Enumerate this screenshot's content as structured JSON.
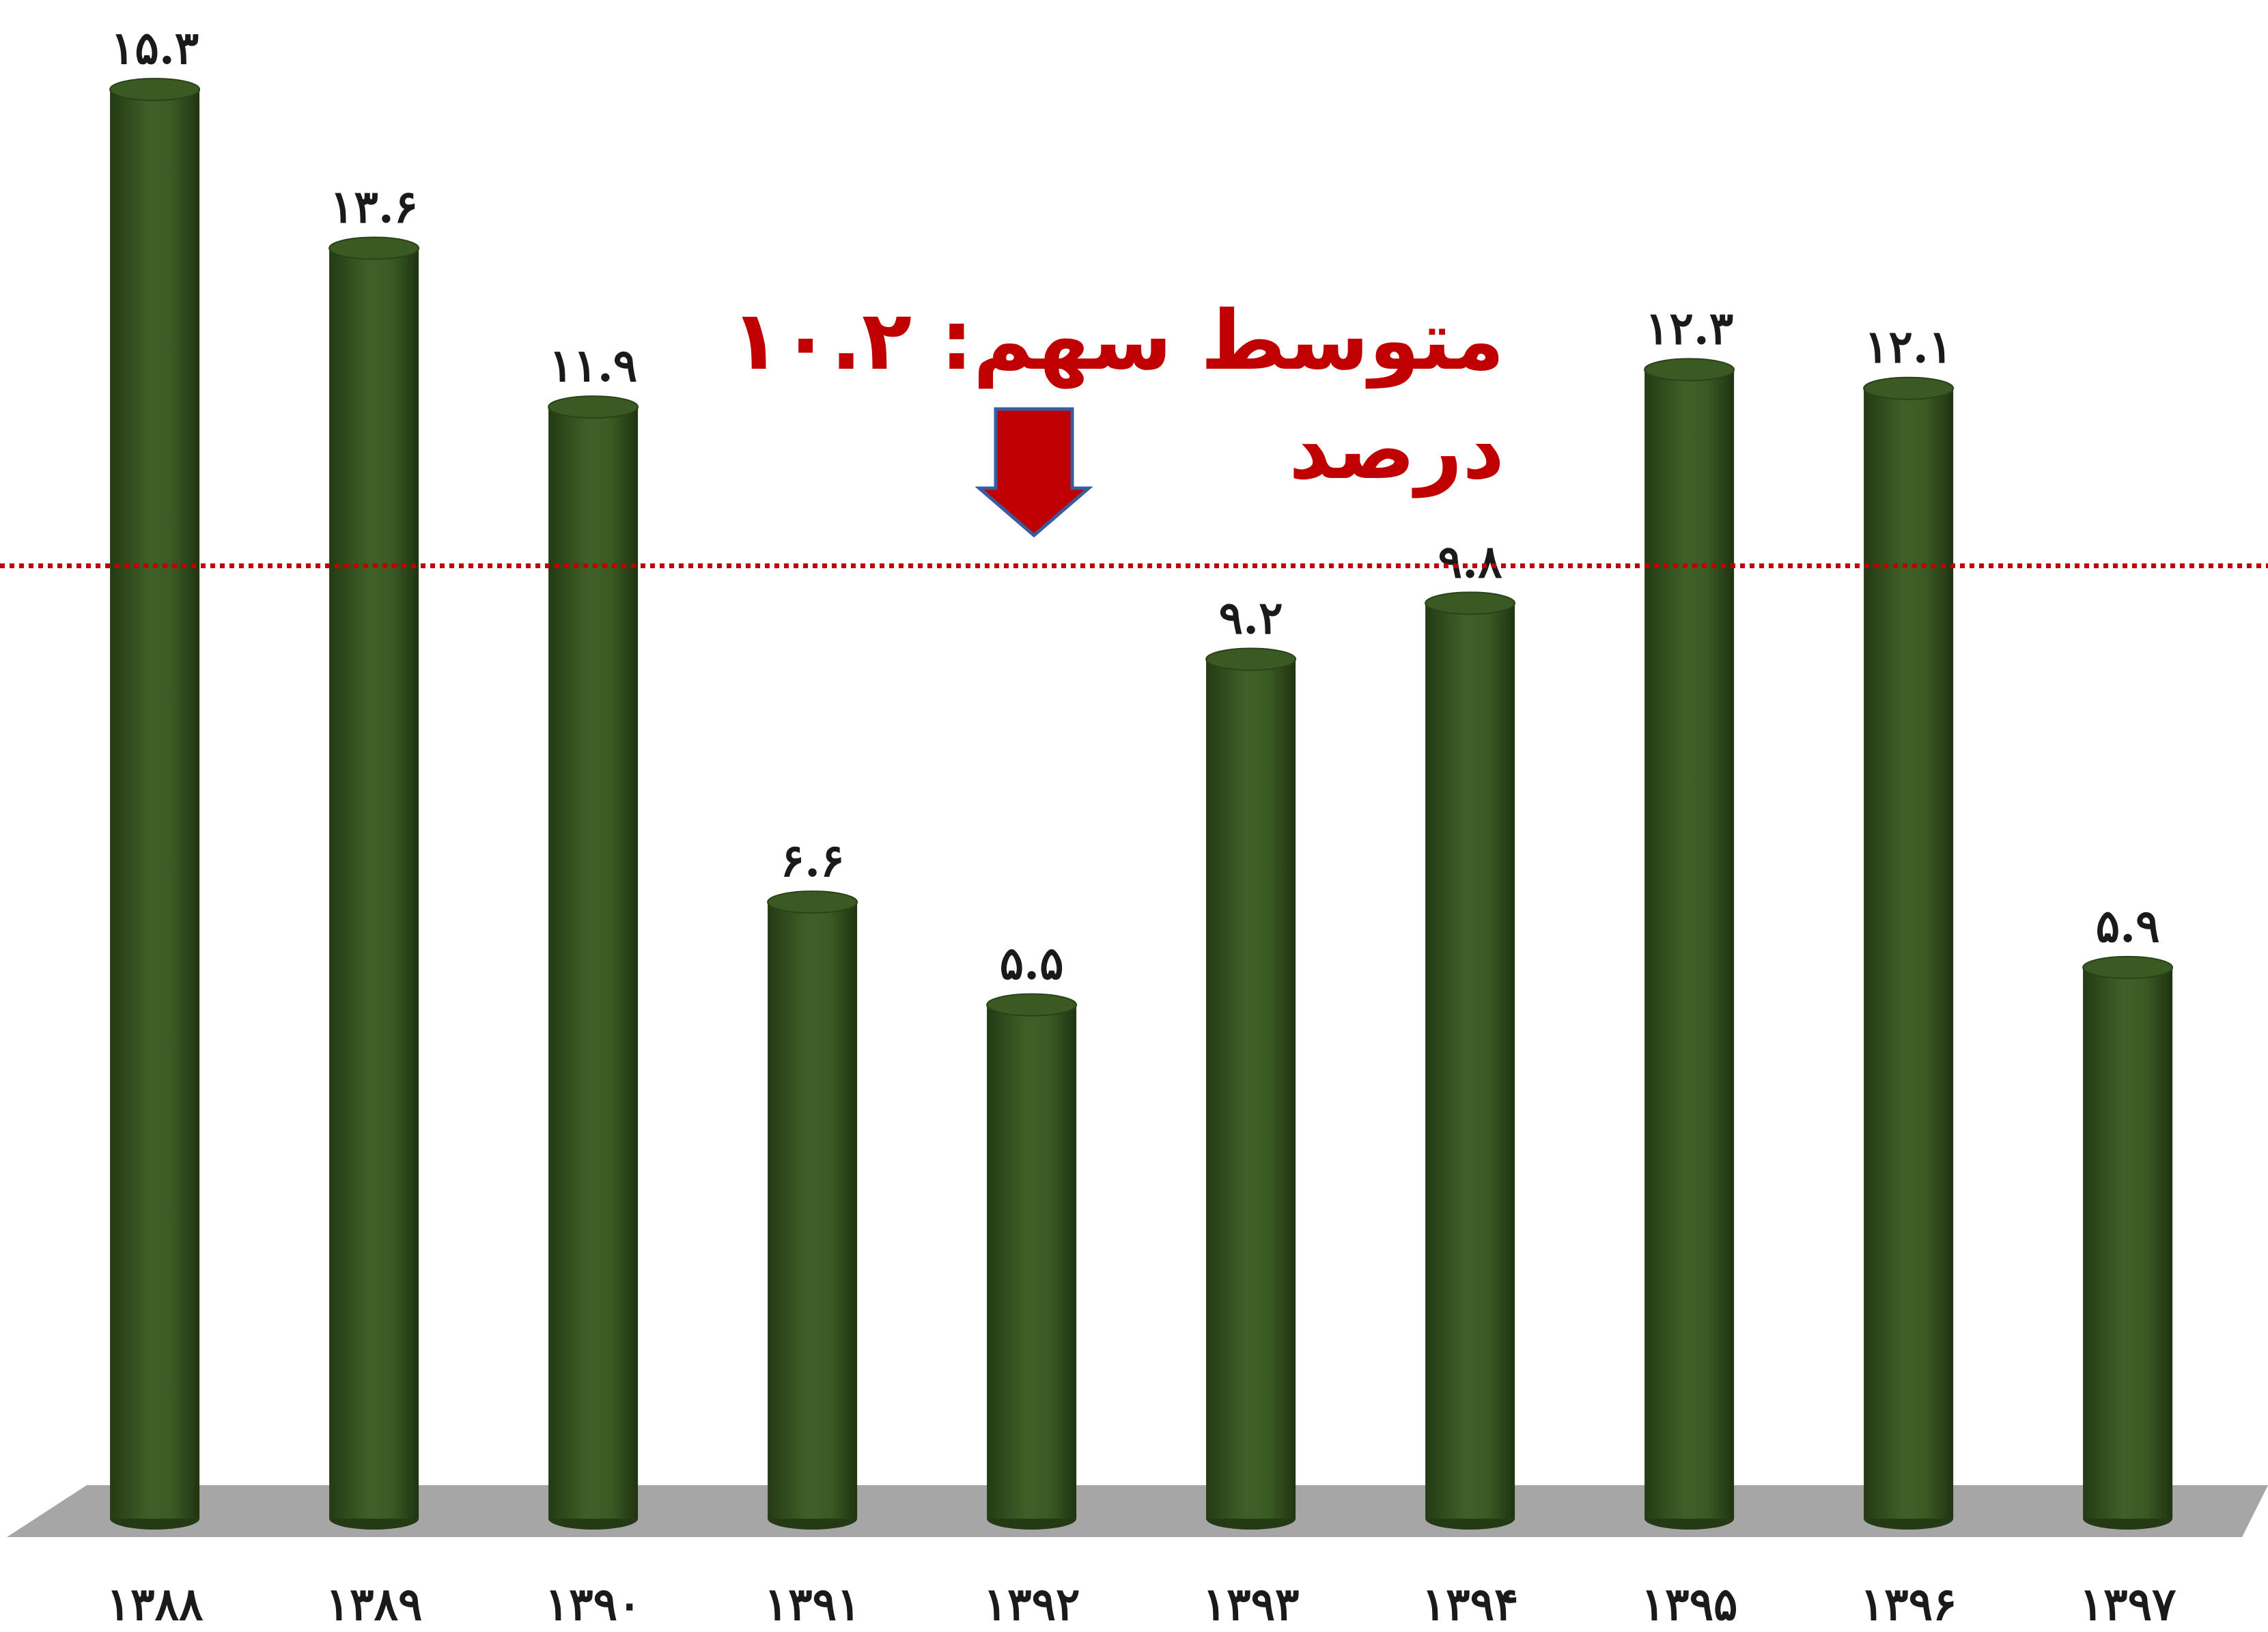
{
  "chart_data": {
    "type": "bar",
    "categories": [
      "۱۳۸۸",
      "۱۳۸۹",
      "۱۳۹۰",
      "۱۳۹۱",
      "۱۳۹۲",
      "۱۳۹۳",
      "۱۳۹۴",
      "۱۳۹۵",
      "۱۳۹۶",
      "۱۳۹۷"
    ],
    "values": [
      15.3,
      13.6,
      11.9,
      6.6,
      5.5,
      9.2,
      9.8,
      12.3,
      12.1,
      5.9
    ],
    "value_labels": [
      "۱۵.۳",
      "۱۳.۶",
      "۱۱.۹",
      "۶.۶",
      "۵.۵",
      "۹.۲",
      "۹.۸",
      "۱۲.۳",
      "۱۲.۱",
      "۵.۹"
    ],
    "color": "#3b5a23",
    "annotation": {
      "lines": [
        "متوسط سهم: ۱۰.۲",
        "درصد"
      ],
      "value": 10.2,
      "color": "#c00000"
    }
  }
}
